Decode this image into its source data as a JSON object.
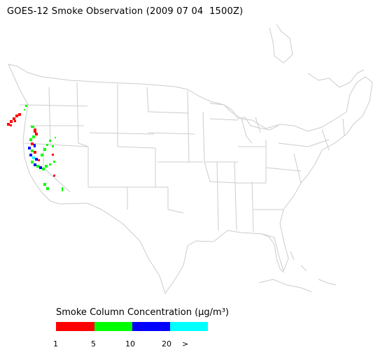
{
  "header": {
    "title": "GOES-12 Smoke Observation (2009 07 04  1500Z)"
  },
  "legend": {
    "title": "Smoke Column Concentration (μg/m³)",
    "bins": [
      {
        "label": "1",
        "color": "#ff0000"
      },
      {
        "label": "5",
        "color": "#00ff00"
      },
      {
        "label": "10",
        "color": "#0000ff"
      },
      {
        "label": "20",
        "color": "#00ffff"
      }
    ],
    "overflow_label": ">"
  },
  "map": {
    "boundary_color": "#cccccc",
    "smoke_region": "west-coast-california-oregon"
  }
}
